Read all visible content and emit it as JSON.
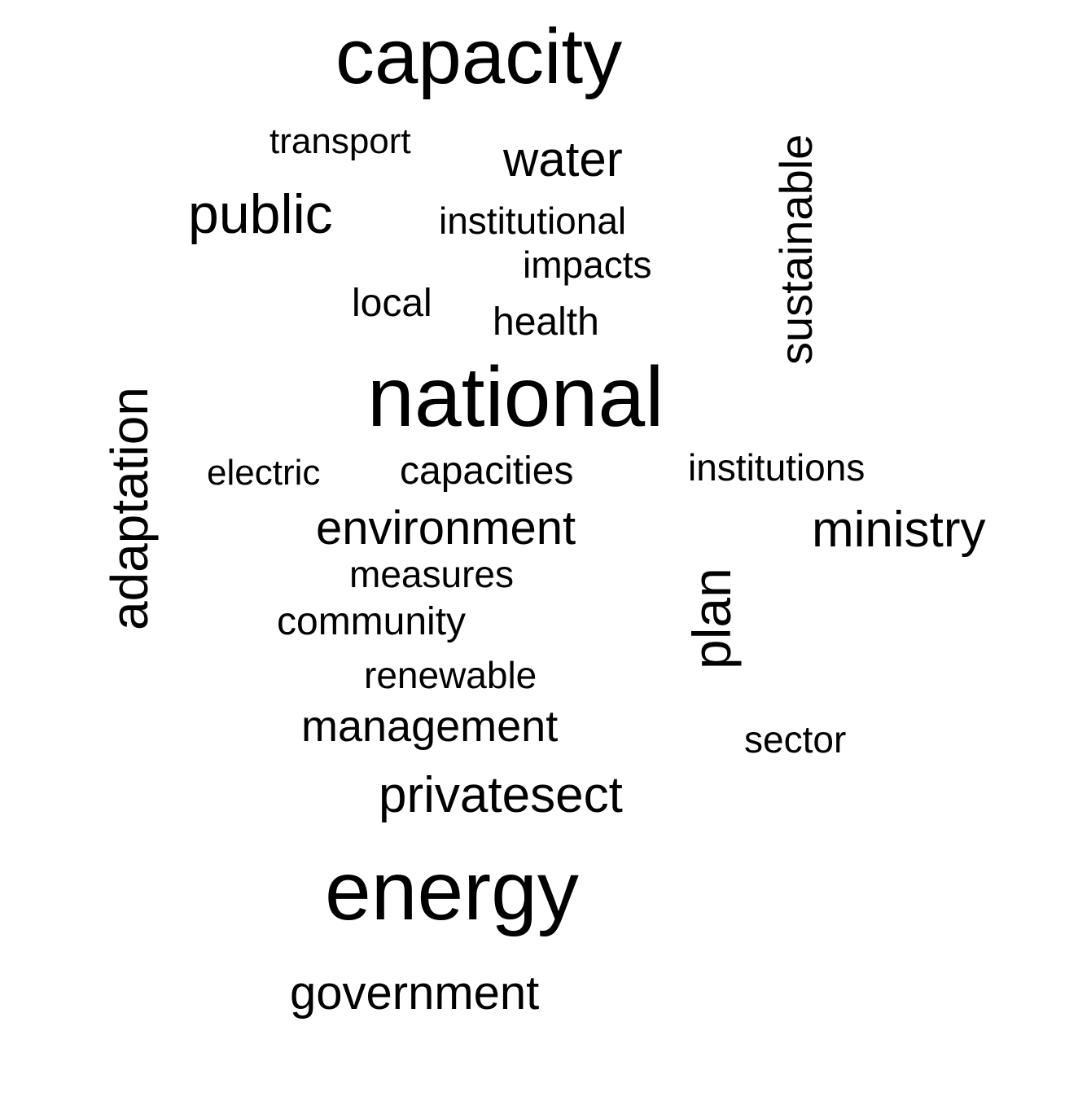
{
  "word_cloud": {
    "words": {
      "capacity": "capacity",
      "transport": "transport",
      "water": "water",
      "sustainable": "sustainable",
      "public": "public",
      "institutional": "institutional",
      "impacts": "impacts",
      "local": "local",
      "health": "health",
      "adaptation": "adaptation",
      "national": "national",
      "electric": "electric",
      "capacities": "capacities",
      "institutions": "institutions",
      "environment": "environment",
      "ministry": "ministry",
      "measures": "measures",
      "plan": "plan",
      "community": "community",
      "renewable": "renewable",
      "management": "management",
      "sector": "sector",
      "privatesect": "privatesect",
      "energy": "energy",
      "government": "government"
    }
  }
}
